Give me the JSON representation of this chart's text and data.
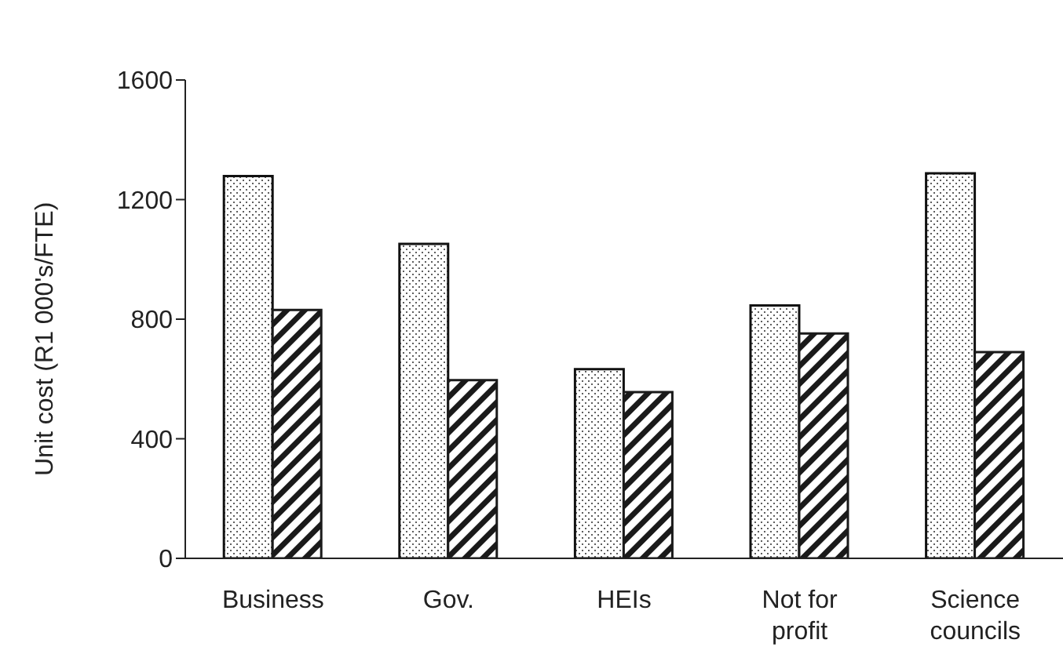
{
  "chart_data": {
    "type": "bar",
    "ylabel": "Unit cost (R1 000's/FTE)",
    "categories": [
      "Business",
      "Gov.",
      "HEIs",
      "Not for profit",
      "Science councils"
    ],
    "series": [
      {
        "color": "#111111",
        "values": [
          1279,
          1052,
          633,
          846,
          1288
        ]
      },
      {
        "color": "#1a1a1a",
        "values": [
          831,
          596,
          556,
          752,
          690
        ]
      }
    ],
    "ylim": [
      0,
      1600
    ],
    "yticks": [
      0,
      400,
      800,
      1200,
      1600
    ],
    "grid": false,
    "legend": false
  }
}
